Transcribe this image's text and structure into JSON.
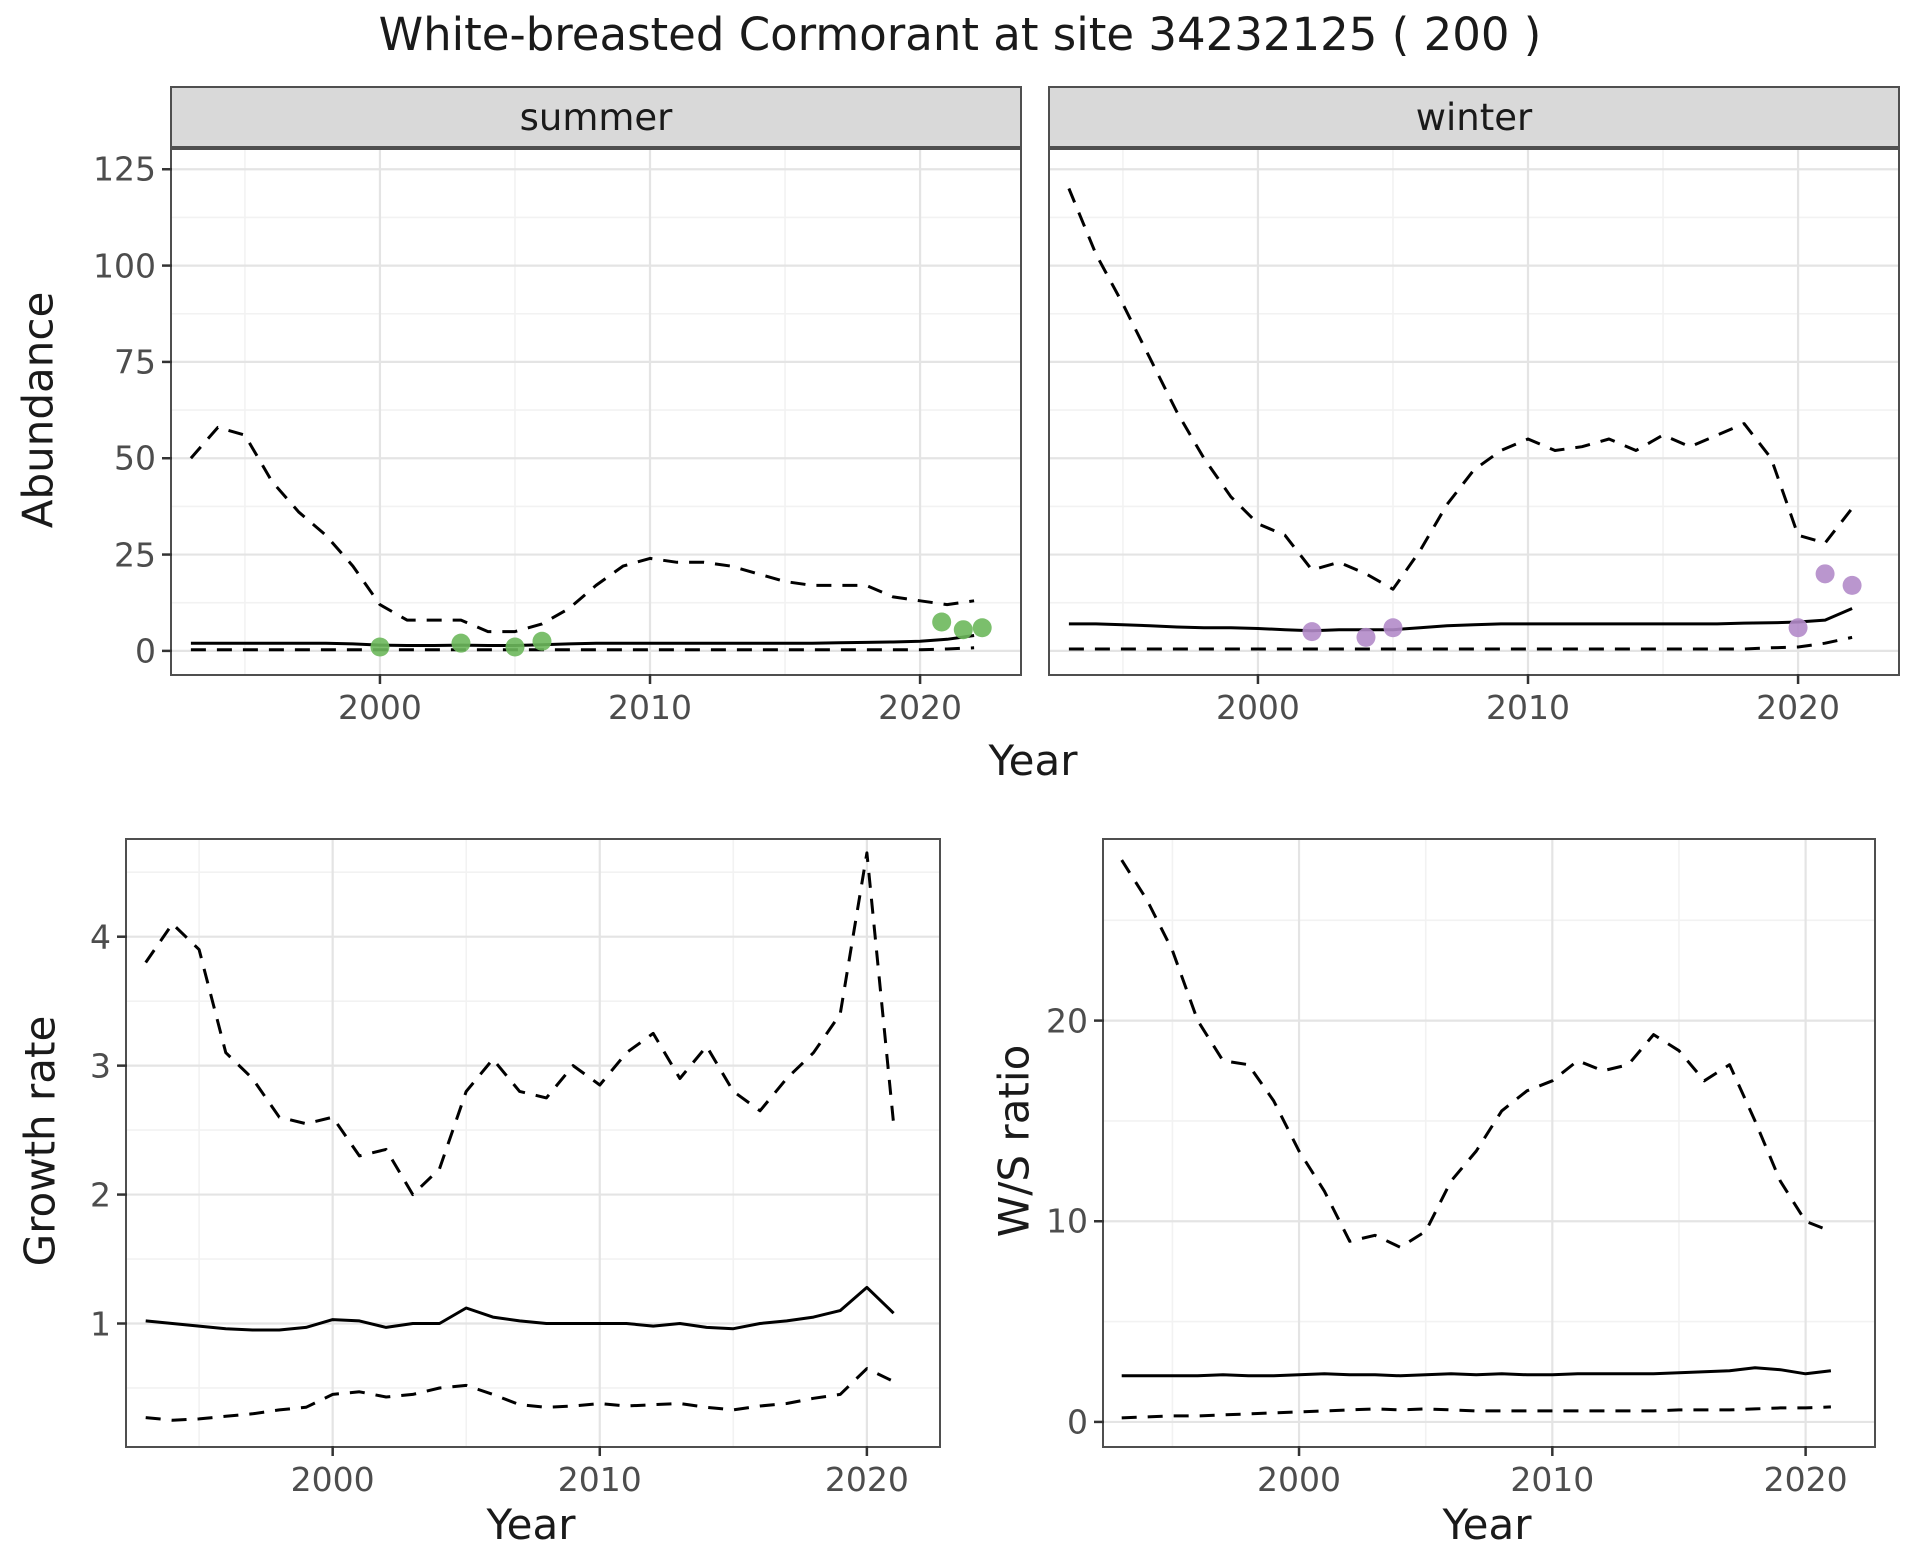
{
  "title": "White-breasted Cormorant at site 34232125 ( 200 )",
  "top_row": {
    "ylabel": "Abundance",
    "xlabel": "Year",
    "facets": [
      "summer",
      "winter"
    ]
  },
  "bottom_left": {
    "ylabel": "Growth rate",
    "xlabel": "Year"
  },
  "bottom_right": {
    "ylabel": "W/S ratio",
    "xlabel": "Year"
  },
  "colors": {
    "line": "#000000",
    "summer_point": "#6db85c",
    "winter_point": "#b28bc9",
    "grid_major": "#e4e4e4",
    "grid_minor": "#f2f2f2",
    "panel_border": "#4f4f4f",
    "strip_bg": "#d9d9d9",
    "tick_text": "#4d4d4d",
    "tick_mark": "#333333"
  },
  "chart_data": [
    {
      "id": "abundance_summer",
      "type": "line",
      "facet": "summer",
      "title": "",
      "xlabel": "Year",
      "ylabel": "Abundance",
      "xlim": [
        1992.3,
        2023.7
      ],
      "ylim": [
        -6,
        130
      ],
      "xticks": [
        2000,
        2010,
        2020
      ],
      "xticks_minor": [
        1995,
        2005,
        2015
      ],
      "yticks": [
        0,
        25,
        50,
        75,
        100,
        125
      ],
      "yticks_minor": [
        12.5,
        37.5,
        62.5,
        87.5,
        112.5
      ],
      "years": [
        1993,
        1994,
        1995,
        1996,
        1997,
        1998,
        1999,
        2000,
        2001,
        2002,
        2003,
        2004,
        2005,
        2006,
        2007,
        2008,
        2009,
        2010,
        2011,
        2012,
        2013,
        2014,
        2015,
        2016,
        2017,
        2018,
        2019,
        2020,
        2021,
        2022
      ],
      "series": [
        {
          "name": "upper_ci",
          "style": "dashed",
          "values": [
            50,
            58,
            56,
            44,
            36,
            30,
            22,
            12,
            8,
            8,
            8,
            5,
            5,
            7,
            11,
            17,
            22,
            24,
            23,
            23,
            22,
            20,
            18,
            17,
            17,
            17,
            14,
            13,
            12,
            13
          ]
        },
        {
          "name": "estimate",
          "style": "solid",
          "values": [
            2,
            2,
            2,
            2,
            2,
            2,
            1.8,
            1.5,
            1.4,
            1.4,
            1.5,
            1.4,
            1.4,
            1.6,
            1.8,
            2,
            2,
            2,
            2,
            2,
            2,
            2,
            2,
            2,
            2.1,
            2.2,
            2.3,
            2.5,
            3,
            4
          ]
        },
        {
          "name": "lower_ci",
          "style": "dashed",
          "values": [
            0.3,
            0.3,
            0.3,
            0.3,
            0.3,
            0.3,
            0.3,
            0.3,
            0.3,
            0.3,
            0.3,
            0.3,
            0.3,
            0.3,
            0.3,
            0.3,
            0.3,
            0.3,
            0.3,
            0.3,
            0.3,
            0.3,
            0.3,
            0.3,
            0.3,
            0.3,
            0.3,
            0.3,
            0.5,
            0.8
          ]
        }
      ],
      "points": {
        "name": "observed_counts",
        "color_key": "summer_point",
        "xy": [
          [
            2000,
            1
          ],
          [
            2003,
            2
          ],
          [
            2005,
            1
          ],
          [
            2006,
            2.5
          ],
          [
            2020.8,
            7.5
          ],
          [
            2021.6,
            5.5
          ],
          [
            2022.3,
            6
          ]
        ]
      }
    },
    {
      "id": "abundance_winter",
      "type": "line",
      "facet": "winter",
      "title": "",
      "xlabel": "Year",
      "ylabel": "Abundance",
      "xlim": [
        1992.3,
        2023.7
      ],
      "ylim": [
        -6,
        130
      ],
      "xticks": [
        2000,
        2010,
        2020
      ],
      "xticks_minor": [
        1995,
        2005,
        2015
      ],
      "yticks": [
        0,
        25,
        50,
        75,
        100,
        125
      ],
      "yticks_minor": [
        12.5,
        37.5,
        62.5,
        87.5,
        112.5
      ],
      "years": [
        1993,
        1994,
        1995,
        1996,
        1997,
        1998,
        1999,
        2000,
        2001,
        2002,
        2003,
        2004,
        2005,
        2006,
        2007,
        2008,
        2009,
        2010,
        2011,
        2012,
        2013,
        2014,
        2015,
        2016,
        2017,
        2018,
        2019,
        2020,
        2021,
        2022
      ],
      "series": [
        {
          "name": "upper_ci",
          "style": "dashed",
          "values": [
            120,
            103,
            90,
            76,
            62,
            50,
            40,
            33,
            30,
            21,
            23,
            20,
            16,
            26,
            38,
            47,
            52,
            55,
            52,
            53,
            55,
            52,
            56,
            53,
            56,
            59,
            50,
            30,
            28,
            37
          ]
        },
        {
          "name": "estimate",
          "style": "solid",
          "values": [
            7,
            7,
            6.8,
            6.5,
            6.2,
            6,
            6,
            5.8,
            5.5,
            5.2,
            5.5,
            5.5,
            5.5,
            6,
            6.5,
            6.8,
            7,
            7,
            7,
            7,
            7,
            7,
            7,
            7,
            7,
            7.2,
            7.3,
            7.5,
            8,
            11
          ]
        },
        {
          "name": "lower_ci",
          "style": "dashed",
          "values": [
            0.5,
            0.5,
            0.5,
            0.5,
            0.5,
            0.5,
            0.5,
            0.5,
            0.5,
            0.5,
            0.5,
            0.5,
            0.5,
            0.5,
            0.5,
            0.5,
            0.5,
            0.5,
            0.5,
            0.5,
            0.5,
            0.5,
            0.5,
            0.5,
            0.5,
            0.5,
            0.8,
            1,
            2,
            3.5
          ]
        }
      ],
      "points": {
        "name": "observed_counts",
        "color_key": "winter_point",
        "xy": [
          [
            2002,
            5
          ],
          [
            2004,
            3.5
          ],
          [
            2005,
            6
          ],
          [
            2020,
            6
          ],
          [
            2021,
            20
          ],
          [
            2022,
            17
          ]
        ]
      }
    },
    {
      "id": "growth_rate",
      "type": "line",
      "title": "",
      "xlabel": "Year",
      "ylabel": "Growth rate",
      "xlim": [
        1992.3,
        2022.7
      ],
      "ylim": [
        0.05,
        4.75
      ],
      "xticks": [
        2000,
        2010,
        2020
      ],
      "xticks_minor": [
        1995,
        2005,
        2015
      ],
      "yticks": [
        1,
        2,
        3,
        4
      ],
      "yticks_minor": [
        0.5,
        1.5,
        2.5,
        3.5,
        4.5
      ],
      "years": [
        1993,
        1994,
        1995,
        1996,
        1997,
        1998,
        1999,
        2000,
        2001,
        2002,
        2003,
        2004,
        2005,
        2006,
        2007,
        2008,
        2009,
        2010,
        2011,
        2012,
        2013,
        2014,
        2015,
        2016,
        2017,
        2018,
        2019,
        2020,
        2021
      ],
      "series": [
        {
          "name": "upper_ci",
          "style": "dashed",
          "values": [
            3.8,
            4.1,
            3.9,
            3.1,
            2.9,
            2.6,
            2.55,
            2.6,
            2.3,
            2.35,
            2.0,
            2.2,
            2.8,
            3.05,
            2.8,
            2.75,
            3.0,
            2.85,
            3.1,
            3.25,
            2.9,
            3.15,
            2.8,
            2.65,
            2.9,
            3.1,
            3.4,
            4.65,
            2.55
          ]
        },
        {
          "name": "estimate",
          "style": "solid",
          "values": [
            1.02,
            1.0,
            0.98,
            0.96,
            0.95,
            0.95,
            0.97,
            1.03,
            1.02,
            0.97,
            1.0,
            1.0,
            1.12,
            1.05,
            1.02,
            1.0,
            1.0,
            1.0,
            1.0,
            0.98,
            1.0,
            0.97,
            0.96,
            1.0,
            1.02,
            1.05,
            1.1,
            1.28,
            1.08
          ]
        },
        {
          "name": "lower_ci",
          "style": "dashed",
          "values": [
            0.27,
            0.25,
            0.26,
            0.28,
            0.3,
            0.33,
            0.35,
            0.45,
            0.47,
            0.43,
            0.45,
            0.5,
            0.52,
            0.45,
            0.37,
            0.35,
            0.36,
            0.38,
            0.36,
            0.37,
            0.38,
            0.35,
            0.33,
            0.36,
            0.38,
            0.42,
            0.45,
            0.65,
            0.55
          ]
        }
      ]
    },
    {
      "id": "ws_ratio",
      "type": "line",
      "title": "",
      "xlabel": "Year",
      "ylabel": "W/S ratio",
      "xlim": [
        1992.3,
        2022.7
      ],
      "ylim": [
        -1.2,
        29
      ],
      "xticks": [
        2000,
        2010,
        2020
      ],
      "xticks_minor": [
        1995,
        2005,
        2015
      ],
      "yticks": [
        0,
        10,
        20
      ],
      "yticks_minor": [
        5,
        15,
        25
      ],
      "years": [
        1993,
        1994,
        1995,
        1996,
        1997,
        1998,
        1999,
        2000,
        2001,
        2002,
        2003,
        2004,
        2005,
        2006,
        2007,
        2008,
        2009,
        2010,
        2011,
        2012,
        2013,
        2014,
        2015,
        2016,
        2017,
        2018,
        2019,
        2020,
        2021
      ],
      "series": [
        {
          "name": "upper_ci",
          "style": "dashed",
          "values": [
            28,
            26,
            23.5,
            20,
            18,
            17.8,
            16,
            13.5,
            11.5,
            9,
            9.3,
            8.7,
            9.5,
            12,
            13.5,
            15.5,
            16.5,
            17,
            18,
            17.5,
            17.8,
            19.3,
            18.5,
            17,
            17.8,
            15,
            12,
            10,
            9.5
          ]
        },
        {
          "name": "estimate",
          "style": "solid",
          "values": [
            2.3,
            2.3,
            2.3,
            2.3,
            2.35,
            2.3,
            2.3,
            2.35,
            2.4,
            2.35,
            2.35,
            2.3,
            2.35,
            2.4,
            2.35,
            2.4,
            2.35,
            2.35,
            2.4,
            2.4,
            2.4,
            2.4,
            2.45,
            2.5,
            2.55,
            2.7,
            2.6,
            2.4,
            2.55
          ]
        },
        {
          "name": "lower_ci",
          "style": "dashed",
          "values": [
            0.2,
            0.25,
            0.3,
            0.3,
            0.35,
            0.4,
            0.45,
            0.5,
            0.55,
            0.6,
            0.65,
            0.6,
            0.65,
            0.6,
            0.55,
            0.55,
            0.55,
            0.55,
            0.55,
            0.55,
            0.55,
            0.55,
            0.6,
            0.6,
            0.6,
            0.65,
            0.7,
            0.7,
            0.75
          ]
        }
      ]
    }
  ]
}
